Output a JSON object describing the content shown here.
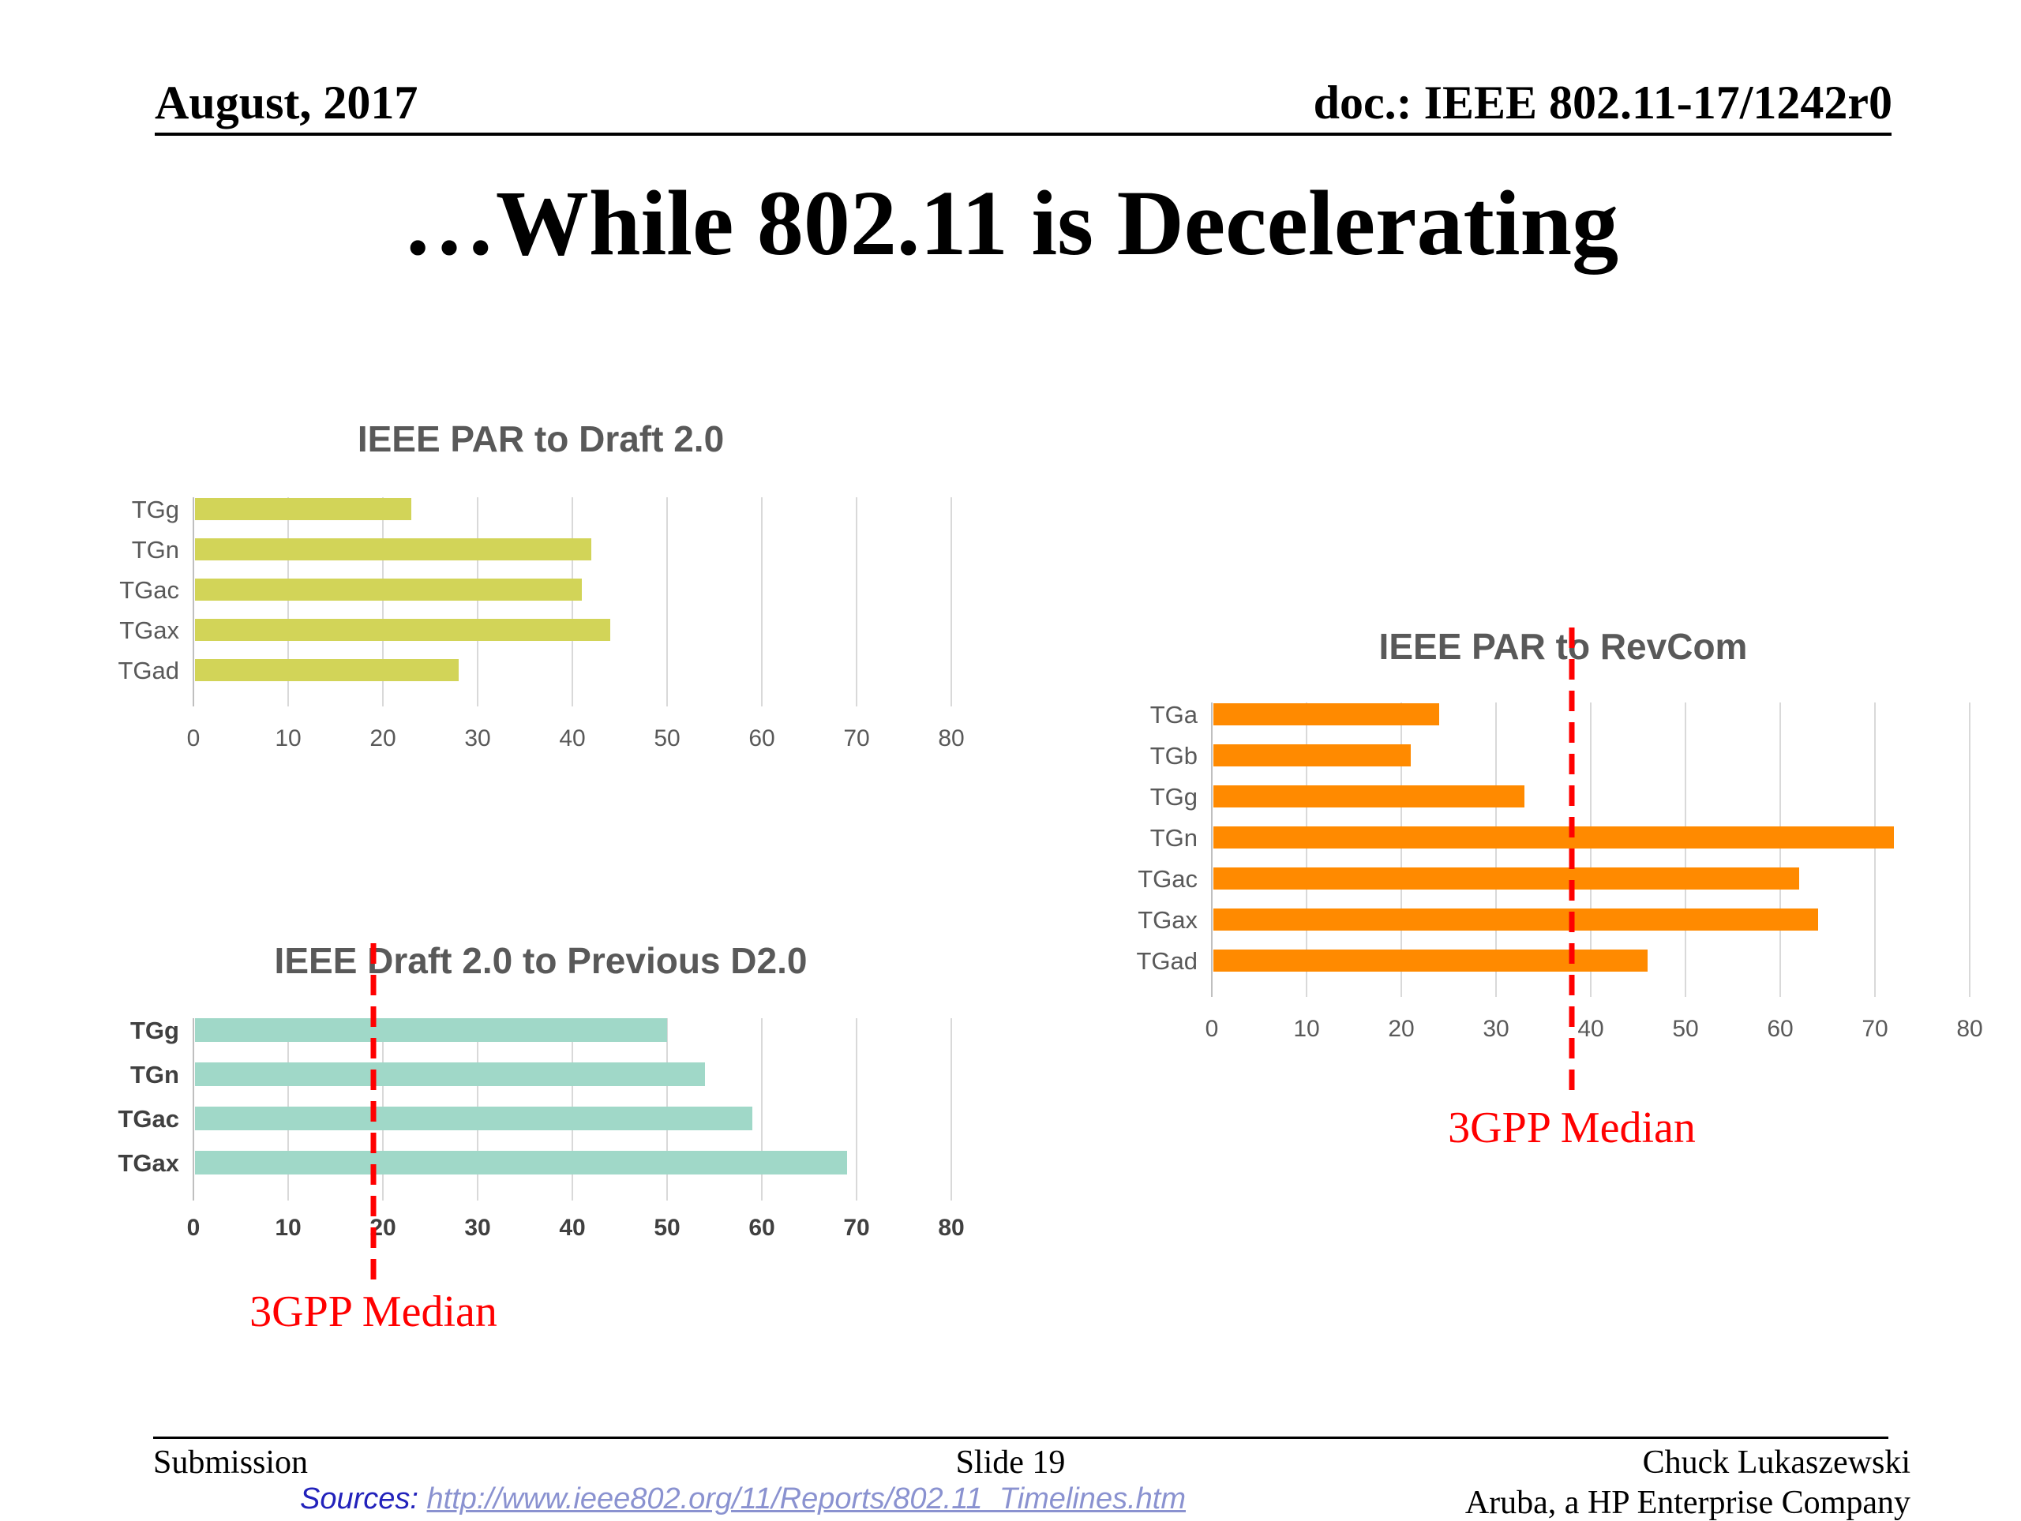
{
  "header": {
    "date": "August, 2017",
    "doc": "doc.: IEEE 802.11-17/1242r0"
  },
  "title": "…While 802.11 is Decelerating",
  "chart_data": [
    {
      "type": "bar",
      "orientation": "horizontal",
      "title": "IEEE PAR to Draft 2.0",
      "categories": [
        "TGg",
        "TGn",
        "TGac",
        "TGax",
        "TGad"
      ],
      "values": [
        23,
        42,
        41,
        44,
        28
      ],
      "xlim": [
        0,
        80
      ],
      "xticks": [
        0,
        10,
        20,
        30,
        40,
        50,
        60,
        70,
        80
      ],
      "grid": true,
      "color": "#d2d458"
    },
    {
      "type": "bar",
      "orientation": "horizontal",
      "title": "IEEE PAR to RevCom",
      "categories": [
        "TGa",
        "TGb",
        "TGg",
        "TGn",
        "TGac",
        "TGax",
        "TGad"
      ],
      "values": [
        24,
        21,
        33,
        72,
        62,
        64,
        46
      ],
      "xlim": [
        0,
        80
      ],
      "xticks": [
        0,
        10,
        20,
        30,
        40,
        50,
        60,
        70,
        80
      ],
      "grid": true,
      "color": "#ff8a00",
      "reference_line": {
        "value": 38,
        "label": "3GPP Median",
        "color": "#ff0000"
      }
    },
    {
      "type": "bar",
      "orientation": "horizontal",
      "title": "IEEE Draft 2.0 to Previous D2.0",
      "categories": [
        "TGg",
        "TGn",
        "TGac",
        "TGax"
      ],
      "values": [
        50,
        54,
        59,
        69
      ],
      "xlim": [
        0,
        80
      ],
      "xticks": [
        0,
        10,
        20,
        30,
        40,
        50,
        60,
        70,
        80
      ],
      "grid": true,
      "color": "#a0d8c8",
      "bold_labels": true,
      "reference_line": {
        "value": 19,
        "label": "3GPP Median",
        "color": "#ff0000"
      }
    }
  ],
  "footer": {
    "left": "Submission",
    "center": "Slide 19",
    "author": "Chuck Lukaszewski",
    "company": "Aruba, a HP Enterprise Company",
    "sources_label": "Sources:",
    "sources_url": "http://www.ieee802.org/11/Reports/802.11_Timelines.htm"
  }
}
